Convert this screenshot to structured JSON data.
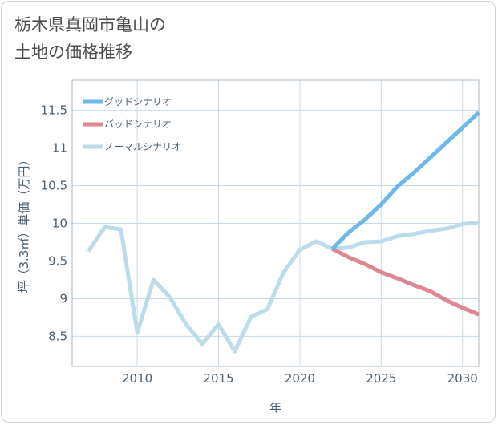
{
  "title": "栃木県真岡市亀山の\n土地の価格推移",
  "chart_data": {
    "type": "line",
    "xlabel": "年",
    "ylabel": "坪（3.3㎡）単価（万円）",
    "xlim": [
      2006,
      2031
    ],
    "ylim": [
      8.1,
      11.9
    ],
    "x_ticks": [
      2010,
      2015,
      2020,
      2025,
      2030
    ],
    "y_ticks": [
      8.5,
      9,
      9.5,
      10,
      10.5,
      11,
      11.5
    ],
    "x_tick_labels": [
      "2010",
      "2015",
      "2020",
      "2025",
      "2030"
    ],
    "y_tick_labels": [
      "8.5",
      "9",
      "9.5",
      "10",
      "10.5",
      "11",
      "11.5"
    ],
    "grid": true,
    "legend_position": "top-left",
    "series": [
      {
        "name": "グッドシナリオ",
        "color": "#6cb8ea",
        "x": [
          2022,
          2023,
          2024,
          2025,
          2026,
          2027,
          2028,
          2029,
          2030,
          2031
        ],
        "values": [
          9.66,
          9.88,
          10.05,
          10.25,
          10.49,
          10.67,
          10.87,
          11.07,
          11.27,
          11.47
        ]
      },
      {
        "name": "バッドシナリオ",
        "color": "#dc8792",
        "x": [
          2022,
          2023,
          2024,
          2025,
          2026,
          2027,
          2028,
          2029,
          2030,
          2031
        ],
        "values": [
          9.66,
          9.55,
          9.46,
          9.35,
          9.27,
          9.18,
          9.1,
          8.98,
          8.88,
          8.79
        ]
      },
      {
        "name": "ノーマルシナリオ",
        "color": "#bcdceb",
        "x": [
          2007,
          2008,
          2009,
          2010,
          2011,
          2012,
          2013,
          2014,
          2015,
          2016,
          2017,
          2018,
          2019,
          2020,
          2021,
          2022,
          2023,
          2024,
          2025,
          2026,
          2027,
          2028,
          2029,
          2030,
          2031
        ],
        "values": [
          9.63,
          9.95,
          9.92,
          8.55,
          9.25,
          9.02,
          8.66,
          8.4,
          8.66,
          8.3,
          8.76,
          8.86,
          9.35,
          9.65,
          9.76,
          9.66,
          9.68,
          9.75,
          9.76,
          9.83,
          9.86,
          9.9,
          9.93,
          9.99,
          10.01
        ]
      }
    ]
  }
}
